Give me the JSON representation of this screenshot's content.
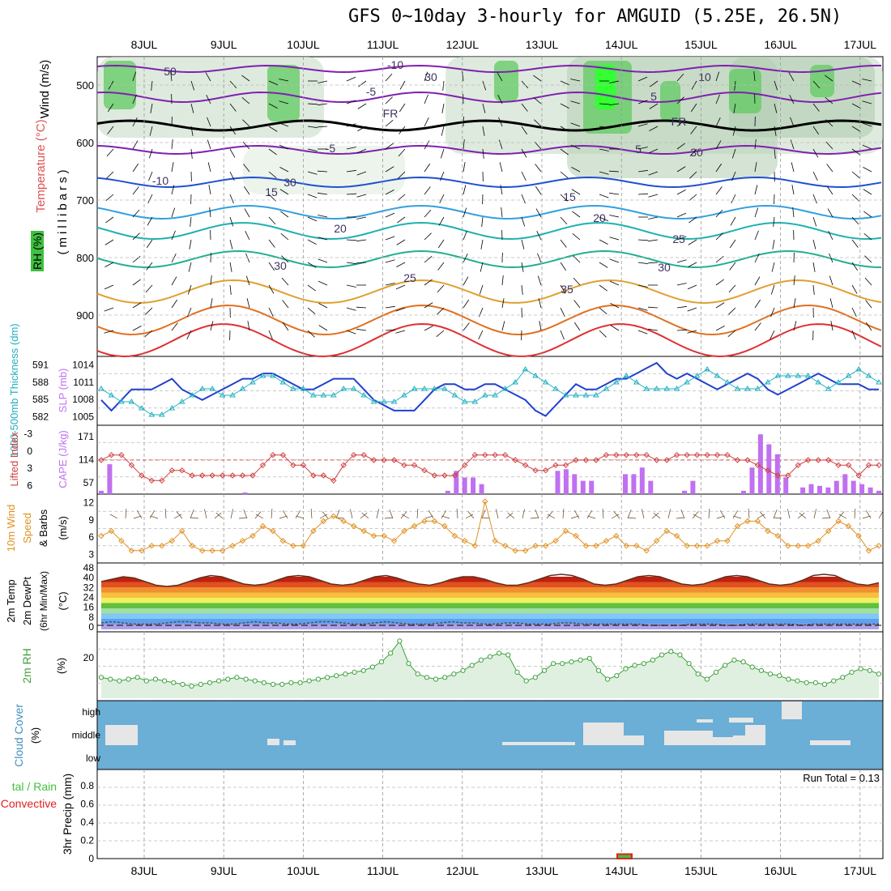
{
  "title": "GFS 0~10day 3-hourly for AMGUID (5.25E, 26.5N)",
  "days": [
    "8JUL",
    "9JUL",
    "10JUL",
    "11JUL",
    "12JUL",
    "13JUL",
    "14JUL",
    "15JUL",
    "16JUL",
    "17JUL"
  ],
  "colors": {
    "temp": "#e05050",
    "dew": "#8040a0",
    "slp": "#2040d0",
    "thk": "#20b0c0",
    "li": "#d04040",
    "cape": "#c070f0",
    "wind": "#e09020",
    "rh": "#40a040",
    "cloud": "#6baed6",
    "precip_total": "#40c040",
    "precip_conv": "#e02020"
  },
  "panel_upper": {
    "ylabel_wind": "Wind (m/s)",
    "ylabel_temp": "Temperature (°C)",
    "ylabel_rh": "RH (%)",
    "ylabel_mb": "(millibars)",
    "yticks": [
      "500",
      "600",
      "700",
      "800",
      "900"
    ],
    "contour_labels": [
      "-10",
      "-5",
      "FR",
      "-5",
      "-10",
      "15",
      "20",
      "25",
      "30",
      "35",
      "10",
      "5",
      "FR",
      "5",
      "15",
      "20",
      "25",
      "30",
      "50",
      "30",
      "30",
      "30"
    ]
  },
  "chart_data": [
    {
      "name": "slp_thickness",
      "type": "line",
      "ylabel_left": "1000-500mb Thickness (dm)",
      "ylabel_right": "SLP (mb)",
      "ticks_left": [
        "591",
        "588",
        "585",
        "582"
      ],
      "ticks_right": [
        "1014",
        "1011",
        "1008",
        "1005"
      ],
      "series": [
        {
          "name": "SLP",
          "values": [
            1008,
            1006,
            1008,
            1010,
            1010,
            1010,
            1011,
            1012,
            1010,
            1009,
            1008,
            1009,
            1010,
            1011,
            1012,
            1012,
            1013,
            1013,
            1012,
            1011,
            1010,
            1010,
            1011,
            1012,
            1012,
            1012,
            1010,
            1008,
            1007,
            1006,
            1006,
            1006,
            1008,
            1010,
            1011,
            1011,
            1010,
            1010,
            1011,
            1011,
            1010,
            1009,
            1008,
            1006,
            1005,
            1007,
            1009,
            1011,
            1010,
            1010,
            1011,
            1012,
            1012,
            1013,
            1014,
            1015,
            1013,
            1012,
            1013,
            1012,
            1011,
            1010,
            1011,
            1012,
            1013,
            1012,
            1010,
            1009,
            1010,
            1011,
            1012,
            1013,
            1012,
            1011,
            1011,
            1011,
            1010,
            1010
          ]
        },
        {
          "name": "Thickness",
          "values": [
            587,
            586,
            585,
            585,
            584,
            583,
            583,
            584,
            585,
            586,
            587,
            587,
            586,
            586,
            587,
            588,
            589,
            589,
            588,
            587,
            587,
            586,
            586,
            586,
            587,
            587,
            586,
            585,
            585,
            585,
            586,
            587,
            587,
            587,
            587,
            586,
            585,
            585,
            586,
            586,
            587,
            588,
            590,
            589,
            588,
            587,
            586,
            586,
            586,
            586,
            587,
            588,
            589,
            588,
            587,
            587,
            587,
            587,
            588,
            589,
            590,
            589,
            588,
            587,
            587,
            587,
            588,
            589,
            589,
            589,
            589,
            588,
            587,
            588,
            589,
            590,
            589,
            588
          ]
        }
      ]
    },
    {
      "name": "lifted_index_cape",
      "type": "line",
      "ylabel_left": "Lifted Index",
      "ylabel_right": "CAPE (J/kg)",
      "ticks_left": [
        "-3",
        "0",
        "3",
        "6"
      ],
      "ticks_right": [
        "171",
        "114",
        "57"
      ],
      "series": [
        {
          "name": "Lifted Index",
          "values": [
            0,
            -1,
            -1,
            1,
            3,
            4,
            4,
            2,
            2,
            3,
            3,
            3,
            3,
            3,
            3,
            3,
            1,
            -1,
            -1,
            1,
            1,
            3,
            3,
            4,
            1,
            -1,
            -1,
            0,
            0,
            0,
            1,
            1,
            2,
            3,
            3,
            3,
            1,
            -1,
            -1,
            -1,
            -1,
            0,
            1,
            2,
            2,
            1,
            1,
            0,
            0,
            0,
            -1,
            -1,
            -1,
            -1,
            -1,
            0,
            0,
            -1,
            -1,
            -1,
            -1,
            -1,
            -1,
            0,
            0,
            1,
            2,
            3,
            3,
            1,
            0,
            0,
            0,
            1,
            1,
            3,
            1,
            1
          ]
        },
        {
          "name": "CAPE",
          "values": [
            10,
            90,
            0,
            0,
            0,
            0,
            0,
            0,
            0,
            0,
            0,
            0,
            0,
            0,
            0,
            0,
            0,
            5,
            0,
            0,
            0,
            0,
            0,
            0,
            0,
            0,
            0,
            0,
            0,
            0,
            0,
            0,
            0,
            0,
            0,
            0,
            0,
            0,
            0,
            0,
            0,
            10,
            70,
            50,
            50,
            30,
            0,
            0,
            0,
            0,
            0,
            0,
            0,
            0,
            70,
            75,
            60,
            40,
            40,
            0,
            0,
            0,
            60,
            60,
            80,
            40,
            0,
            0,
            0,
            10,
            40,
            0,
            0,
            0,
            0,
            0,
            10,
            80,
            180,
            150,
            120,
            50,
            0,
            20,
            30,
            25,
            20,
            40,
            60,
            40,
            30,
            20,
            10
          ]
        }
      ]
    },
    {
      "name": "wind_10m",
      "type": "line",
      "ylabel": "10m Wind Speed & Barbs (m/s)",
      "ticks": [
        "12",
        "9",
        "6",
        "3"
      ],
      "values": [
        5,
        6,
        4,
        2,
        2,
        3,
        3,
        4,
        6,
        3,
        2,
        2,
        2,
        3,
        4,
        5,
        7,
        6,
        4,
        3,
        3,
        6,
        8,
        9,
        8,
        7,
        6,
        5,
        5,
        4,
        6,
        7,
        8,
        8,
        7,
        5,
        4,
        3,
        12,
        4,
        3,
        2,
        2,
        3,
        3,
        4,
        6,
        5,
        3,
        3,
        4,
        5,
        3,
        3,
        2,
        4,
        6,
        5,
        3,
        3,
        3,
        4,
        4,
        7,
        8,
        8,
        6,
        5,
        3,
        3,
        3,
        4,
        6,
        8,
        7,
        5,
        2,
        3
      ]
    },
    {
      "name": "temp_2m",
      "type": "area",
      "ylabel": "2m Temp 2m DewPt (6hr Min/Max) (°C)",
      "ticks": [
        "48",
        "40",
        "32",
        "24",
        "16",
        "8",
        "0"
      ],
      "series": [
        {
          "name": "Temp",
          "values": [
            38,
            40,
            42,
            41,
            38,
            35,
            34,
            35,
            38,
            41,
            43,
            42,
            39,
            36,
            35,
            36,
            39,
            42,
            43,
            42,
            39,
            36,
            35,
            36,
            39,
            42,
            43,
            41,
            38,
            36,
            35,
            37,
            40,
            42,
            42,
            40,
            37,
            35,
            35,
            37,
            40,
            43,
            44,
            43,
            40,
            36,
            35,
            36,
            39,
            42,
            43,
            42,
            39,
            36,
            35,
            36,
            39,
            42,
            43,
            42,
            39,
            36,
            35,
            36,
            39,
            43,
            44,
            43,
            39,
            36,
            35,
            37
          ]
        },
        {
          "name": "DewPt",
          "values": [
            4,
            5,
            4,
            3,
            3,
            3,
            4,
            5,
            5,
            4,
            4,
            3,
            3,
            4,
            5,
            4,
            4,
            3,
            3,
            4,
            5,
            5,
            4,
            3,
            3,
            4,
            5,
            4,
            3,
            3,
            3,
            4,
            5,
            4,
            4,
            3,
            3,
            4,
            4,
            3,
            3,
            3,
            4,
            4,
            3,
            3,
            3,
            3,
            3,
            3,
            2,
            2,
            2,
            2,
            3,
            3,
            3,
            2,
            2,
            3,
            3,
            3,
            3,
            3,
            2,
            3,
            3,
            3,
            3,
            3,
            3,
            3
          ]
        }
      ]
    },
    {
      "name": "rh_2m",
      "type": "area",
      "ylabel": "2m RH (%)",
      "ticks": [
        "20"
      ],
      "values": [
        12,
        11,
        10,
        11,
        12,
        10,
        11,
        10,
        9,
        8,
        7,
        8,
        9,
        10,
        11,
        12,
        11,
        10,
        9,
        8,
        8,
        9,
        9,
        10,
        11,
        12,
        13,
        14,
        15,
        16,
        18,
        21,
        26,
        33,
        20,
        14,
        12,
        11,
        12,
        14,
        16,
        19,
        22,
        24,
        26,
        25,
        15,
        10,
        12,
        16,
        20,
        20,
        21,
        22,
        23,
        16,
        11,
        13,
        17,
        19,
        20,
        22,
        25,
        27,
        25,
        20,
        14,
        11,
        15,
        19,
        22,
        21,
        18,
        16,
        14,
        13,
        11,
        10,
        9,
        9,
        8,
        10,
        12,
        15,
        17,
        16,
        14
      ]
    },
    {
      "name": "cloud_cover",
      "type": "heatmap",
      "ylabel": "Cloud Cover (%)",
      "ticks": [
        "high",
        "middle",
        "low"
      ]
    },
    {
      "name": "precip_3hr",
      "type": "bar",
      "ylabel": "3hr Precip (mm)",
      "legend": "Total / Rain Convective",
      "annotation": "Run Total = 0.13",
      "ticks": [
        "0.8",
        "0.6",
        "0.4",
        "0.2",
        "0"
      ],
      "ylim": [
        0,
        1
      ],
      "events": [
        {
          "day": "14JUL",
          "total": 0.05,
          "convective": 0.05
        }
      ]
    }
  ]
}
